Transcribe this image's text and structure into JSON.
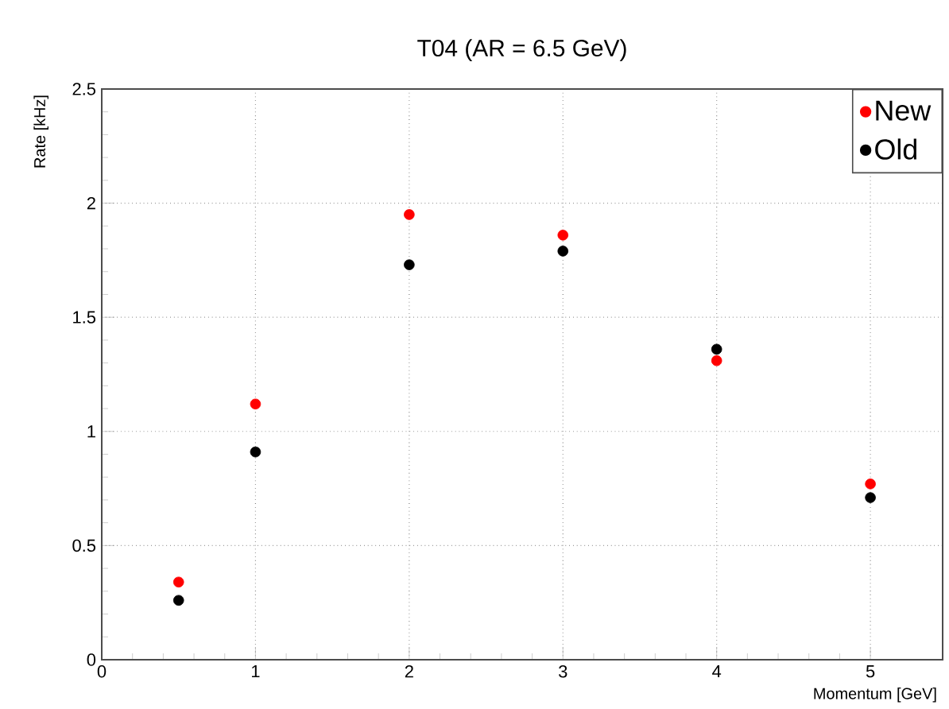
{
  "chart_data": {
    "type": "scatter",
    "title": "T04 (AR = 6.5 GeV)",
    "xlabel": "Momentum [GeV]",
    "ylabel": "Rate [kHz]",
    "x": [
      0.5,
      1,
      2,
      3,
      4,
      5
    ],
    "series": [
      {
        "name": "New",
        "color": "#ff0000",
        "values": [
          0.34,
          1.12,
          1.95,
          1.86,
          1.31,
          0.77
        ]
      },
      {
        "name": "Old",
        "color": "#000000",
        "values": [
          0.26,
          0.91,
          1.73,
          1.79,
          1.36,
          0.71
        ]
      }
    ],
    "xlim": [
      0,
      5.47
    ],
    "ylim": [
      0,
      2.5
    ],
    "xticks": [
      0,
      1,
      2,
      3,
      4,
      5
    ],
    "yticks": [
      0,
      0.5,
      1,
      1.5,
      2,
      2.5
    ],
    "grid": true,
    "legend": "top right",
    "marker": "circle"
  }
}
